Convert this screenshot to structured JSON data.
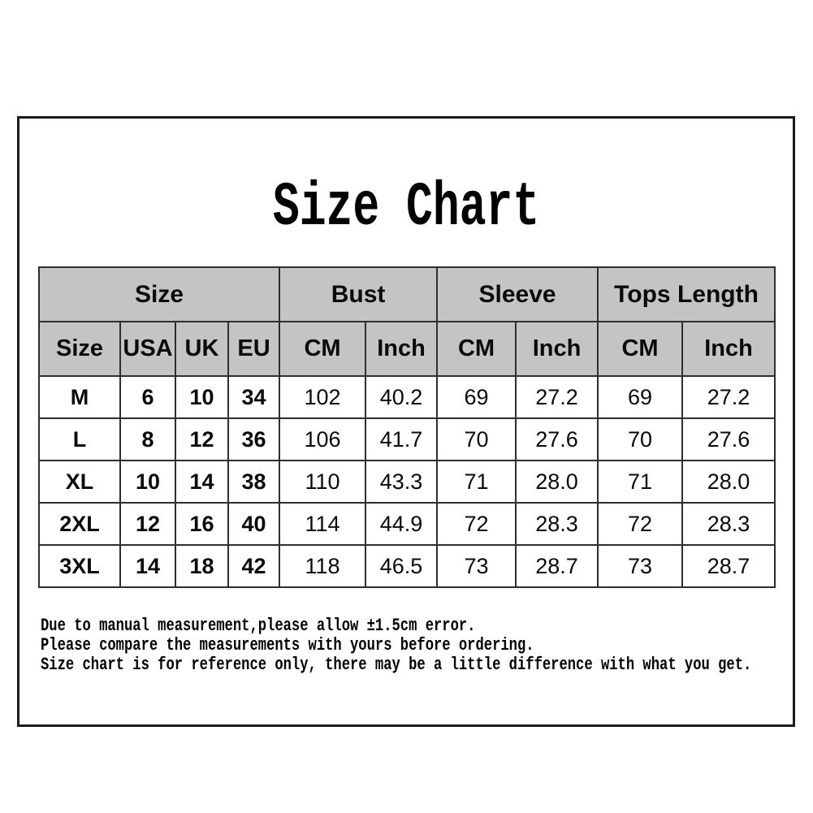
{
  "title": "Size Chart",
  "colors": {
    "header_bg": "#c4c4c4",
    "grid_border": "#2e2e2e",
    "frame_border": "#1c1c1c"
  },
  "chart_data": {
    "type": "table",
    "title": "Size Chart",
    "column_groups": [
      {
        "label": "Size",
        "span": 4
      },
      {
        "label": "Bust",
        "span": 2
      },
      {
        "label": "Sleeve",
        "span": 2
      },
      {
        "label": "Tops Length",
        "span": 2
      }
    ],
    "columns": [
      "Size",
      "USA",
      "UK",
      "EU",
      "CM",
      "Inch",
      "CM",
      "Inch",
      "CM",
      "Inch"
    ],
    "rows": [
      [
        "M",
        "6",
        "10",
        "34",
        "102",
        "40.2",
        "69",
        "27.2",
        "69",
        "27.2"
      ],
      [
        "L",
        "8",
        "12",
        "36",
        "106",
        "41.7",
        "70",
        "27.6",
        "70",
        "27.6"
      ],
      [
        "XL",
        "10",
        "14",
        "38",
        "110",
        "43.3",
        "71",
        "28.0",
        "71",
        "28.0"
      ],
      [
        "2XL",
        "12",
        "16",
        "40",
        "114",
        "44.9",
        "72",
        "28.3",
        "72",
        "28.3"
      ],
      [
        "3XL",
        "14",
        "18",
        "42",
        "118",
        "46.5",
        "73",
        "28.7",
        "73",
        "28.7"
      ]
    ]
  },
  "notes": [
    "Due to manual measurement,please allow ±1.5cm error.",
    "Please compare the measurements with yours before ordering.",
    "Size chart is for reference only, there may be a little difference with what you get."
  ]
}
